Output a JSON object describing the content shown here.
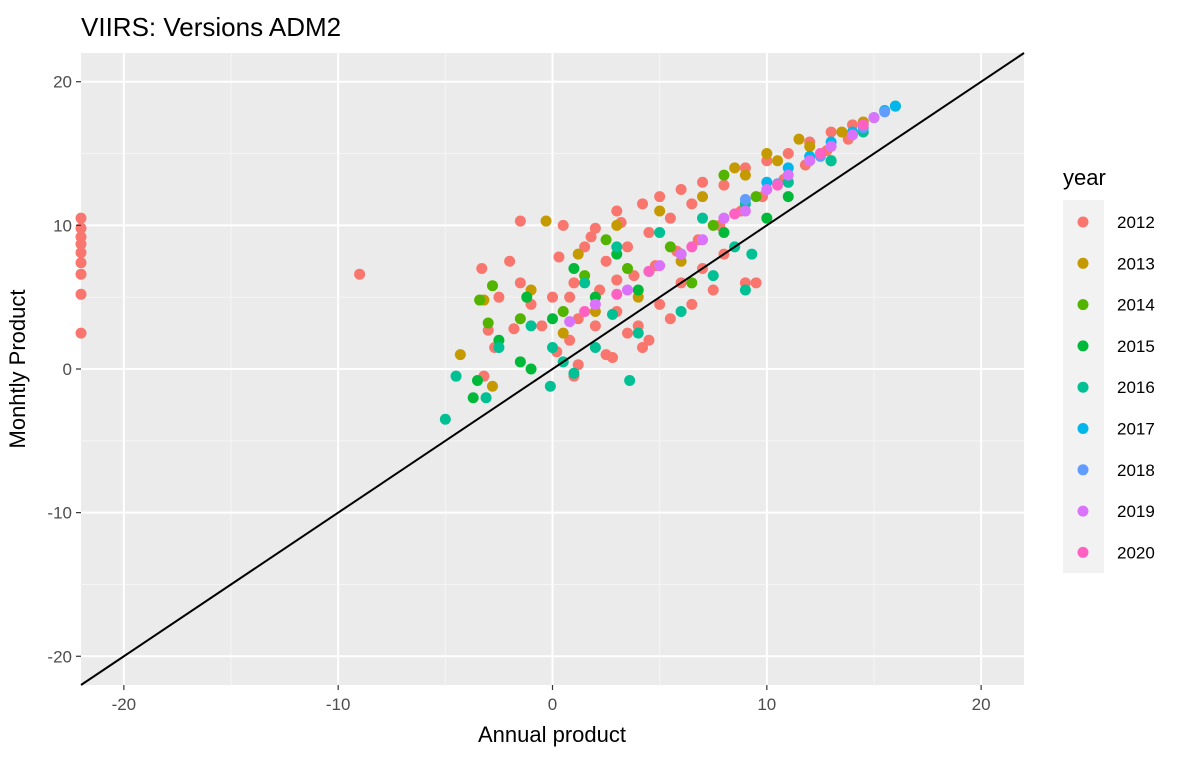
{
  "chart_data": {
    "type": "scatter",
    "title": "VIIRS: Versions ADM2",
    "xlabel": "Annual product",
    "ylabel": "Monhtly Product",
    "xlim": [
      -22,
      22
    ],
    "ylim": [
      -22,
      22
    ],
    "x_ticks": [
      -20,
      -10,
      0,
      10,
      20
    ],
    "y_ticks": [
      -20,
      -10,
      0,
      10,
      20
    ],
    "x_tick_labels": [
      "-20",
      "-10",
      "0",
      "10",
      "20"
    ],
    "y_tick_labels": [
      "-20",
      "-10",
      "0",
      "10",
      "20"
    ],
    "grid": true,
    "background": "#ebebeb",
    "reference_line": {
      "slope": 1,
      "intercept": 0,
      "color": "#000000"
    },
    "legend": {
      "title": "year",
      "position": "right"
    },
    "series": [
      {
        "name": "2012",
        "color": "#F8766D",
        "points": [
          [
            -22,
            10.5
          ],
          [
            -22,
            9.8
          ],
          [
            -22,
            9.2
          ],
          [
            -22,
            8.7
          ],
          [
            -22,
            8.1
          ],
          [
            -22,
            7.4
          ],
          [
            -22,
            6.6
          ],
          [
            -22,
            5.2
          ],
          [
            -22,
            2.5
          ],
          [
            -9,
            6.6
          ],
          [
            -1.5,
            10.3
          ],
          [
            -3.3,
            7
          ],
          [
            -3,
            2.7
          ],
          [
            -3.2,
            -0.5
          ],
          [
            0.5,
            10
          ],
          [
            2,
            9.8
          ],
          [
            3,
            11
          ],
          [
            4.2,
            11.5
          ],
          [
            5,
            12
          ],
          [
            6,
            12.5
          ],
          [
            7,
            13
          ],
          [
            8,
            12.8
          ],
          [
            9,
            14
          ],
          [
            10,
            14.5
          ],
          [
            11,
            15
          ],
          [
            12,
            15.8
          ],
          [
            13,
            16.5
          ],
          [
            14,
            17
          ],
          [
            1,
            6
          ],
          [
            2,
            5
          ],
          [
            3,
            4
          ],
          [
            4,
            3
          ],
          [
            5,
            4.5
          ],
          [
            6,
            6
          ],
          [
            7,
            7
          ],
          [
            8,
            8
          ],
          [
            9,
            6
          ],
          [
            1,
            -0.5
          ],
          [
            0.8,
            2
          ],
          [
            2.5,
            1
          ],
          [
            3.5,
            2.5
          ],
          [
            4.5,
            2
          ],
          [
            5.5,
            3.5
          ],
          [
            6.5,
            4.5
          ],
          [
            2.5,
            7.5
          ],
          [
            3.5,
            8.5
          ],
          [
            4.5,
            9.5
          ],
          [
            5.5,
            10.5
          ],
          [
            6.5,
            11.5
          ],
          [
            1.5,
            8.5
          ],
          [
            0,
            5
          ],
          [
            -0.5,
            3
          ],
          [
            -1,
            4.5
          ],
          [
            -1.5,
            6
          ],
          [
            -2,
            7.5
          ],
          [
            -2.5,
            5
          ],
          [
            0.2,
            1.2
          ],
          [
            1.2,
            3.5
          ],
          [
            2.2,
            5.5
          ],
          [
            3.8,
            6.5
          ],
          [
            4.8,
            7.2
          ],
          [
            5.8,
            8.2
          ],
          [
            6.8,
            9
          ],
          [
            7.8,
            10
          ],
          [
            8.8,
            11
          ],
          [
            9.8,
            12
          ],
          [
            10.8,
            13.2
          ],
          [
            11.8,
            14.2
          ],
          [
            12.8,
            15.2
          ],
          [
            13.8,
            16
          ],
          [
            -2.7,
            1.5
          ],
          [
            -1.8,
            2.8
          ],
          [
            0.3,
            7.8
          ],
          [
            1.8,
            9.2
          ],
          [
            3.2,
            10.2
          ],
          [
            7.5,
            5.5
          ],
          [
            9.5,
            6
          ],
          [
            1.2,
            0.3
          ],
          [
            2.8,
            0.8
          ],
          [
            4.2,
            1.5
          ],
          [
            0.8,
            5
          ],
          [
            2,
            3
          ],
          [
            3,
            6.2
          ]
        ]
      },
      {
        "name": "2013",
        "color": "#C49A00",
        "points": [
          [
            -4.3,
            1
          ],
          [
            -3.2,
            4.8
          ],
          [
            -2.8,
            -1.2
          ],
          [
            -0.3,
            10.3
          ],
          [
            -1,
            5.5
          ],
          [
            1.2,
            8
          ],
          [
            3,
            10
          ],
          [
            5,
            11
          ],
          [
            7,
            12
          ],
          [
            9,
            13.5
          ],
          [
            10.5,
            14.5
          ],
          [
            12,
            15.5
          ],
          [
            13.5,
            16.5
          ],
          [
            14.5,
            17.2
          ],
          [
            8.5,
            14
          ],
          [
            10,
            15
          ],
          [
            11.5,
            16
          ],
          [
            2,
            4
          ],
          [
            4,
            5
          ],
          [
            6,
            7.5
          ],
          [
            0.5,
            2.5
          ]
        ]
      },
      {
        "name": "2014",
        "color": "#53B400",
        "points": [
          [
            -3.4,
            4.8
          ],
          [
            -3,
            3.2
          ],
          [
            -2.8,
            5.8
          ],
          [
            -1.5,
            3.5
          ],
          [
            1.5,
            6.5
          ],
          [
            3.5,
            7
          ],
          [
            5.5,
            8.5
          ],
          [
            7.5,
            10
          ],
          [
            8,
            13.5
          ],
          [
            9.5,
            12
          ],
          [
            11,
            13
          ],
          [
            0.5,
            4
          ],
          [
            2.5,
            9
          ],
          [
            6.5,
            6
          ]
        ]
      },
      {
        "name": "2015",
        "color": "#00B939",
        "points": [
          [
            -3.5,
            -0.8
          ],
          [
            -3.7,
            -2
          ],
          [
            -2.5,
            2
          ],
          [
            -1.5,
            0.5
          ],
          [
            -1,
            0
          ],
          [
            0,
            3.5
          ],
          [
            2,
            5
          ],
          [
            4,
            5.5
          ],
          [
            6,
            8
          ],
          [
            8,
            9.5
          ],
          [
            10,
            10.5
          ],
          [
            11,
            12
          ],
          [
            13,
            14.5
          ],
          [
            -1.2,
            5
          ],
          [
            1,
            7
          ],
          [
            3,
            8
          ]
        ]
      },
      {
        "name": "2016",
        "color": "#00C094",
        "points": [
          [
            -5,
            -3.5
          ],
          [
            -4.5,
            -0.5
          ],
          [
            -3.1,
            -2
          ],
          [
            -0.1,
            -1.2
          ],
          [
            1,
            -0.3
          ],
          [
            3.6,
            -0.8
          ],
          [
            7.5,
            6.5
          ],
          [
            9,
            5.5
          ],
          [
            9.3,
            8
          ],
          [
            6,
            4
          ],
          [
            4,
            2.5
          ],
          [
            2,
            1.5
          ],
          [
            0,
            1.5
          ],
          [
            -1,
            3
          ],
          [
            -2.5,
            1.5
          ],
          [
            1.5,
            6
          ],
          [
            3,
            8.5
          ],
          [
            5,
            9.5
          ],
          [
            7,
            10.5
          ],
          [
            9,
            11.5
          ],
          [
            11,
            13
          ],
          [
            13,
            14.5
          ],
          [
            14.5,
            16.5
          ],
          [
            16,
            18.3
          ],
          [
            8.5,
            8.5
          ],
          [
            4.5,
            6.8
          ],
          [
            2.8,
            3.8
          ],
          [
            0.5,
            0.5
          ]
        ]
      },
      {
        "name": "2017",
        "color": "#00B6EB",
        "points": [
          [
            10,
            13
          ],
          [
            11,
            14
          ],
          [
            12,
            14.8
          ],
          [
            13,
            15.8
          ],
          [
            14,
            16.5
          ],
          [
            15,
            17.5
          ],
          [
            15.5,
            18
          ],
          [
            16,
            18.3
          ]
        ]
      },
      {
        "name": "2018",
        "color": "#619CFF",
        "points": [
          [
            9,
            11.8
          ],
          [
            10.5,
            12.9
          ],
          [
            12.5,
            14.8
          ],
          [
            14.5,
            16.8
          ],
          [
            15.5,
            17.9
          ]
        ]
      },
      {
        "name": "2019",
        "color": "#DB72FB",
        "points": [
          [
            0.8,
            3.3
          ],
          [
            2,
            4.5
          ],
          [
            3.5,
            5.5
          ],
          [
            5,
            7.2
          ],
          [
            6,
            8
          ],
          [
            7,
            9
          ],
          [
            8,
            10.5
          ],
          [
            9,
            11
          ],
          [
            10,
            12.5
          ],
          [
            11,
            13.5
          ],
          [
            12,
            14.5
          ],
          [
            13,
            15.5
          ],
          [
            14,
            16.3
          ],
          [
            15,
            17.5
          ]
        ]
      },
      {
        "name": "2020",
        "color": "#FF61C3",
        "points": [
          [
            1.5,
            4
          ],
          [
            3,
            5.2
          ],
          [
            4.5,
            6.8
          ],
          [
            6.5,
            8.5
          ],
          [
            8.5,
            10.8
          ],
          [
            10.5,
            12.8
          ],
          [
            12.5,
            15
          ],
          [
            14.5,
            17
          ]
        ]
      }
    ]
  }
}
